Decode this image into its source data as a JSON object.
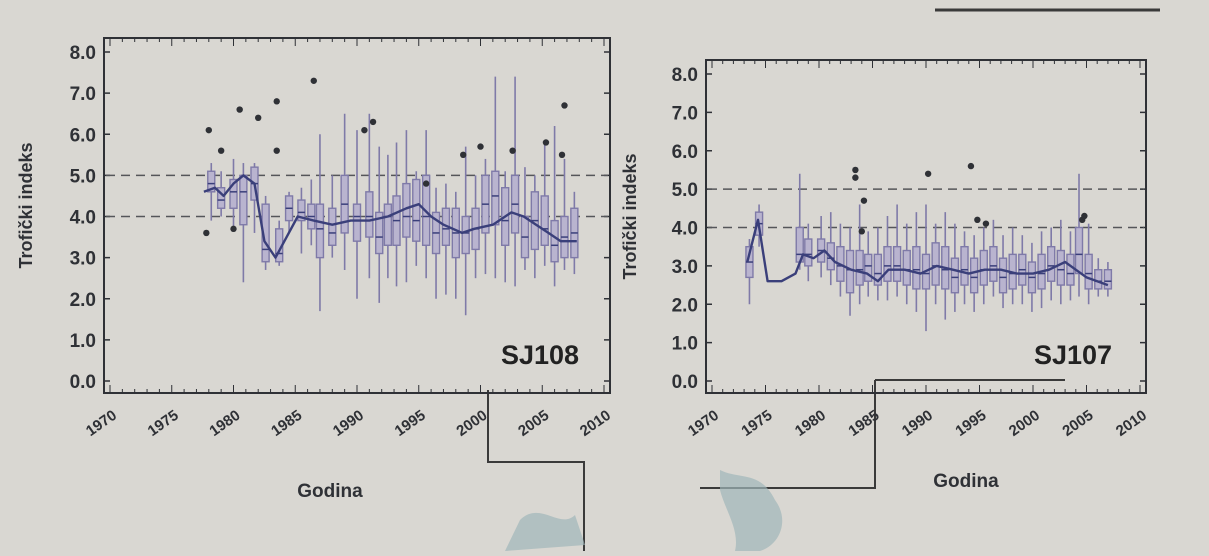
{
  "colors": {
    "paper": "#d9d7d2",
    "ink": "#2f3136",
    "box": "#7f7aa8",
    "trend": "#3a3f7a",
    "dash": "#55565a"
  },
  "chart_data": [
    {
      "type": "box",
      "station": "SJ108",
      "ylabel": "Trofički indeks",
      "xlabel": "Godina",
      "xlim": [
        1970,
        2010
      ],
      "ylim": [
        0,
        8
      ],
      "x_ticks": [
        "1970",
        "1975",
        "1980",
        "1985",
        "1990",
        "1995",
        "2000",
        "2005",
        "2010"
      ],
      "y_ticks": [
        "0.0",
        "1.0",
        "2.0",
        "3.0",
        "4.0",
        "5.0",
        "6.0",
        "7.0",
        "8.0"
      ],
      "reference_lines": [
        4.0,
        5.0
      ],
      "boxes": [
        {
          "x": 1978.2,
          "min": 3.9,
          "q1": 4.6,
          "med": 4.8,
          "q3": 5.1,
          "max": 5.3
        },
        {
          "x": 1979.0,
          "min": 4.0,
          "q1": 4.2,
          "med": 4.4,
          "q3": 4.7,
          "max": 5.1
        },
        {
          "x": 1980.0,
          "min": 3.7,
          "q1": 4.2,
          "med": 4.6,
          "q3": 4.9,
          "max": 5.4
        },
        {
          "x": 1980.8,
          "min": 2.4,
          "q1": 3.8,
          "med": 4.6,
          "q3": 5.0,
          "max": 5.3
        },
        {
          "x": 1981.7,
          "min": 3.6,
          "q1": 4.4,
          "med": 4.8,
          "q3": 5.2,
          "max": 5.3
        },
        {
          "x": 1982.6,
          "min": 2.7,
          "q1": 2.9,
          "med": 3.2,
          "q3": 4.3,
          "max": 4.5
        },
        {
          "x": 1983.7,
          "min": 2.8,
          "q1": 2.9,
          "med": 3.1,
          "q3": 3.7,
          "max": 3.9
        },
        {
          "x": 1984.5,
          "min": 3.6,
          "q1": 3.9,
          "med": 4.2,
          "q3": 4.5,
          "max": 4.6
        },
        {
          "x": 1985.5,
          "min": 3.1,
          "q1": 3.9,
          "med": 4.1,
          "q3": 4.4,
          "max": 4.7
        },
        {
          "x": 1986.3,
          "min": 3.3,
          "q1": 3.7,
          "med": 4.0,
          "q3": 4.3,
          "max": 4.9
        },
        {
          "x": 1987.0,
          "min": 1.7,
          "q1": 3.0,
          "med": 3.7,
          "q3": 4.3,
          "max": 6.0
        },
        {
          "x": 1988.0,
          "min": 3.0,
          "q1": 3.3,
          "med": 3.6,
          "q3": 4.2,
          "max": 5.0
        },
        {
          "x": 1989.0,
          "min": 2.7,
          "q1": 3.6,
          "med": 4.3,
          "q3": 5.0,
          "max": 6.5
        },
        {
          "x": 1990.0,
          "min": 2.0,
          "q1": 3.4,
          "med": 4.0,
          "q3": 4.3,
          "max": 6.1
        },
        {
          "x": 1991.0,
          "min": 2.5,
          "q1": 3.5,
          "med": 4.0,
          "q3": 4.6,
          "max": 6.5
        },
        {
          "x": 1991.8,
          "min": 1.9,
          "q1": 3.1,
          "med": 3.5,
          "q3": 4.1,
          "max": 5.7
        },
        {
          "x": 1992.5,
          "min": 2.5,
          "q1": 3.3,
          "med": 4.0,
          "q3": 4.3,
          "max": 5.5
        },
        {
          "x": 1993.2,
          "min": 2.3,
          "q1": 3.3,
          "med": 3.9,
          "q3": 4.5,
          "max": 5.8
        },
        {
          "x": 1994.0,
          "min": 2.4,
          "q1": 3.5,
          "med": 4.0,
          "q3": 4.8,
          "max": 6.1
        },
        {
          "x": 1994.8,
          "min": 2.8,
          "q1": 3.4,
          "med": 3.9,
          "q3": 4.9,
          "max": 5.1
        },
        {
          "x": 1995.6,
          "min": 2.5,
          "q1": 3.3,
          "med": 4.0,
          "q3": 5.0,
          "max": 6.1
        },
        {
          "x": 1996.4,
          "min": 2.0,
          "q1": 3.1,
          "med": 3.6,
          "q3": 4.1,
          "max": 4.7
        },
        {
          "x": 1997.2,
          "min": 2.1,
          "q1": 3.3,
          "med": 3.7,
          "q3": 4.2,
          "max": 4.8
        },
        {
          "x": 1998.0,
          "min": 2.0,
          "q1": 3.0,
          "med": 3.6,
          "q3": 4.2,
          "max": 4.6
        },
        {
          "x": 1998.8,
          "min": 1.6,
          "q1": 3.1,
          "med": 3.6,
          "q3": 4.0,
          "max": 5.7
        },
        {
          "x": 1999.6,
          "min": 2.5,
          "q1": 3.2,
          "med": 3.7,
          "q3": 4.2,
          "max": 5.0
        },
        {
          "x": 2000.4,
          "min": 2.6,
          "q1": 3.6,
          "med": 4.3,
          "q3": 5.0,
          "max": 5.4
        },
        {
          "x": 2001.2,
          "min": 2.5,
          "q1": 3.8,
          "med": 4.5,
          "q3": 5.1,
          "max": 7.4
        },
        {
          "x": 2002.0,
          "min": 2.4,
          "q1": 3.3,
          "med": 3.9,
          "q3": 4.7,
          "max": 5.1
        },
        {
          "x": 2002.8,
          "min": 2.3,
          "q1": 3.6,
          "med": 4.3,
          "q3": 5.0,
          "max": 7.4
        },
        {
          "x": 2003.6,
          "min": 2.7,
          "q1": 3.0,
          "med": 3.5,
          "q3": 4.0,
          "max": 5.2
        },
        {
          "x": 2004.4,
          "min": 2.5,
          "q1": 3.2,
          "med": 3.9,
          "q3": 4.6,
          "max": 5.0
        },
        {
          "x": 2005.2,
          "min": 2.8,
          "q1": 3.3,
          "med": 3.7,
          "q3": 4.5,
          "max": 5.8
        },
        {
          "x": 2006.0,
          "min": 2.3,
          "q1": 2.9,
          "med": 3.3,
          "q3": 3.9,
          "max": 6.2
        },
        {
          "x": 2006.8,
          "min": 2.7,
          "q1": 3.0,
          "med": 3.5,
          "q3": 4.0,
          "max": 5.4
        },
        {
          "x": 2007.6,
          "min": 2.6,
          "q1": 3.0,
          "med": 3.6,
          "q3": 4.2,
          "max": 4.6
        }
      ],
      "trend": [
        [
          1977.6,
          4.6
        ],
        [
          1978.5,
          4.7
        ],
        [
          1979.2,
          4.5
        ],
        [
          1980.0,
          4.8
        ],
        [
          1980.8,
          5.0
        ],
        [
          1981.7,
          4.8
        ],
        [
          1982.5,
          3.4
        ],
        [
          1983.4,
          3.0
        ],
        [
          1984.3,
          3.5
        ],
        [
          1985.2,
          4.0
        ],
        [
          1986.5,
          3.9
        ],
        [
          1988.0,
          3.8
        ],
        [
          1989.5,
          3.9
        ],
        [
          1991.0,
          3.9
        ],
        [
          1992.5,
          4.0
        ],
        [
          1994.0,
          4.2
        ],
        [
          1995.0,
          4.3
        ],
        [
          1996.0,
          4.0
        ],
        [
          1997.0,
          3.8
        ],
        [
          1998.5,
          3.6
        ],
        [
          1999.5,
          3.7
        ],
        [
          2001.0,
          3.8
        ],
        [
          2002.5,
          4.1
        ],
        [
          2003.5,
          4.0
        ],
        [
          2004.5,
          3.8
        ],
        [
          2005.5,
          3.6
        ],
        [
          2006.5,
          3.4
        ],
        [
          2007.8,
          3.4
        ]
      ],
      "outliers": [
        [
          1978.0,
          6.1
        ],
        [
          1979.0,
          5.6
        ],
        [
          1980.5,
          6.6
        ],
        [
          1982.0,
          6.4
        ],
        [
          1983.5,
          6.8
        ],
        [
          1983.5,
          5.6
        ],
        [
          1986.5,
          7.3
        ],
        [
          1990.6,
          6.1
        ],
        [
          1991.3,
          6.3
        ],
        [
          1995.6,
          4.8
        ],
        [
          1998.6,
          5.5
        ],
        [
          2000.0,
          5.7
        ],
        [
          2002.6,
          5.6
        ],
        [
          2005.3,
          5.8
        ],
        [
          2006.8,
          6.7
        ],
        [
          2006.6,
          5.5
        ],
        [
          1977.8,
          3.6
        ],
        [
          1980.0,
          3.7
        ]
      ]
    },
    {
      "type": "box",
      "station": "SJ107",
      "ylabel": "Trofički indeks",
      "xlabel": "Godina",
      "xlim": [
        1970,
        2010
      ],
      "ylim": [
        0,
        8
      ],
      "x_ticks": [
        "1970",
        "1975",
        "1980",
        "1985",
        "1990",
        "1995",
        "2000",
        "2005",
        "2010"
      ],
      "y_ticks": [
        "0.0",
        "1.0",
        "2.0",
        "3.0",
        "4.0",
        "5.0",
        "6.0",
        "7.0",
        "8.0"
      ],
      "reference_lines": [
        4.0,
        5.0
      ],
      "boxes": [
        {
          "x": 1973.5,
          "min": 2.0,
          "q1": 2.7,
          "med": 3.1,
          "q3": 3.5,
          "max": 3.7
        },
        {
          "x": 1974.4,
          "min": 3.5,
          "q1": 3.8,
          "med": 4.1,
          "q3": 4.4,
          "max": 4.6
        },
        {
          "x": 1978.2,
          "min": 2.9,
          "q1": 3.1,
          "med": 3.3,
          "q3": 4.0,
          "max": 5.4
        },
        {
          "x": 1979.0,
          "min": 2.6,
          "q1": 3.0,
          "med": 3.3,
          "q3": 3.7,
          "max": 4.1
        },
        {
          "x": 1980.2,
          "min": 2.7,
          "q1": 3.1,
          "med": 3.4,
          "q3": 3.7,
          "max": 4.3
        },
        {
          "x": 1981.1,
          "min": 2.5,
          "q1": 2.9,
          "med": 3.2,
          "q3": 3.6,
          "max": 4.4
        },
        {
          "x": 1982.0,
          "min": 2.2,
          "q1": 2.6,
          "med": 3.0,
          "q3": 3.5,
          "max": 4.1
        },
        {
          "x": 1982.9,
          "min": 1.7,
          "q1": 2.3,
          "med": 2.9,
          "q3": 3.4,
          "max": 4.0
        },
        {
          "x": 1983.8,
          "min": 2.0,
          "q1": 2.5,
          "med": 2.9,
          "q3": 3.4,
          "max": 4.6
        },
        {
          "x": 1984.6,
          "min": 2.2,
          "q1": 2.6,
          "med": 3.0,
          "q3": 3.3,
          "max": 3.9
        },
        {
          "x": 1985.5,
          "min": 2.1,
          "q1": 2.5,
          "med": 2.8,
          "q3": 3.3,
          "max": 4.0
        },
        {
          "x": 1986.4,
          "min": 2.1,
          "q1": 2.6,
          "med": 3.0,
          "q3": 3.5,
          "max": 4.3
        },
        {
          "x": 1987.3,
          "min": 2.2,
          "q1": 2.6,
          "med": 3.0,
          "q3": 3.5,
          "max": 4.6
        },
        {
          "x": 1988.2,
          "min": 2.0,
          "q1": 2.5,
          "med": 2.9,
          "q3": 3.4,
          "max": 4.1
        },
        {
          "x": 1989.1,
          "min": 1.8,
          "q1": 2.4,
          "med": 2.9,
          "q3": 3.5,
          "max": 4.4
        },
        {
          "x": 1990.0,
          "min": 1.3,
          "q1": 2.4,
          "med": 2.8,
          "q3": 3.3,
          "max": 4.6
        },
        {
          "x": 1990.9,
          "min": 2.0,
          "q1": 2.5,
          "med": 3.0,
          "q3": 3.6,
          "max": 4.1
        },
        {
          "x": 1991.8,
          "min": 1.6,
          "q1": 2.4,
          "med": 2.9,
          "q3": 3.5,
          "max": 4.4
        },
        {
          "x": 1992.7,
          "min": 1.8,
          "q1": 2.3,
          "med": 2.7,
          "q3": 3.2,
          "max": 4.1
        },
        {
          "x": 1993.6,
          "min": 2.0,
          "q1": 2.5,
          "med": 2.9,
          "q3": 3.5,
          "max": 3.9
        },
        {
          "x": 1994.5,
          "min": 1.8,
          "q1": 2.3,
          "med": 2.7,
          "q3": 3.2,
          "max": 3.8
        },
        {
          "x": 1995.4,
          "min": 2.0,
          "q1": 2.5,
          "med": 2.9,
          "q3": 3.4,
          "max": 4.0
        },
        {
          "x": 1996.3,
          "min": 2.2,
          "q1": 2.6,
          "med": 3.0,
          "q3": 3.5,
          "max": 4.2
        },
        {
          "x": 1997.2,
          "min": 1.9,
          "q1": 2.3,
          "med": 2.7,
          "q3": 3.2,
          "max": 3.8
        },
        {
          "x": 1998.1,
          "min": 2.0,
          "q1": 2.4,
          "med": 2.8,
          "q3": 3.3,
          "max": 4.0
        },
        {
          "x": 1999.0,
          "min": 2.0,
          "q1": 2.5,
          "med": 2.9,
          "q3": 3.3,
          "max": 3.8
        },
        {
          "x": 1999.9,
          "min": 1.8,
          "q1": 2.3,
          "med": 2.7,
          "q3": 3.1,
          "max": 3.6
        },
        {
          "x": 2000.8,
          "min": 1.9,
          "q1": 2.4,
          "med": 2.8,
          "q3": 3.3,
          "max": 3.9
        },
        {
          "x": 2001.7,
          "min": 2.1,
          "q1": 2.6,
          "med": 3.0,
          "q3": 3.5,
          "max": 4.0
        },
        {
          "x": 2002.6,
          "min": 2.0,
          "q1": 2.5,
          "med": 2.9,
          "q3": 3.4,
          "max": 4.2
        },
        {
          "x": 2003.5,
          "min": 2.1,
          "q1": 2.5,
          "med": 2.8,
          "q3": 3.3,
          "max": 3.9
        },
        {
          "x": 2004.3,
          "min": 2.2,
          "q1": 2.8,
          "med": 3.3,
          "q3": 4.0,
          "max": 5.4
        },
        {
          "x": 2005.2,
          "min": 2.0,
          "q1": 2.4,
          "med": 2.8,
          "q3": 3.3,
          "max": 4.1
        },
        {
          "x": 2006.1,
          "min": 2.2,
          "q1": 2.4,
          "med": 2.6,
          "q3": 2.9,
          "max": 3.2
        },
        {
          "x": 2007.0,
          "min": 2.2,
          "q1": 2.4,
          "med": 2.6,
          "q3": 2.9,
          "max": 3.1
        }
      ],
      "trend": [
        [
          1973.3,
          3.1
        ],
        [
          1974.3,
          4.2
        ],
        [
          1975.2,
          2.6
        ],
        [
          1976.5,
          2.6
        ],
        [
          1977.8,
          2.8
        ],
        [
          1978.5,
          3.3
        ],
        [
          1979.5,
          3.2
        ],
        [
          1980.5,
          3.4
        ],
        [
          1981.5,
          3.1
        ],
        [
          1983.0,
          2.9
        ],
        [
          1984.5,
          2.8
        ],
        [
          1985.5,
          2.6
        ],
        [
          1986.5,
          2.9
        ],
        [
          1988.0,
          2.9
        ],
        [
          1989.5,
          2.8
        ],
        [
          1991.0,
          3.0
        ],
        [
          1992.5,
          2.9
        ],
        [
          1994.0,
          2.8
        ],
        [
          1995.5,
          2.9
        ],
        [
          1997.0,
          2.9
        ],
        [
          1998.5,
          2.8
        ],
        [
          2000.0,
          2.8
        ],
        [
          2001.5,
          2.9
        ],
        [
          2003.0,
          3.1
        ],
        [
          2004.0,
          2.9
        ],
        [
          2005.0,
          2.7
        ],
        [
          2006.0,
          2.6
        ],
        [
          2007.0,
          2.5
        ]
      ],
      "outliers": [
        [
          1983.4,
          5.5
        ],
        [
          1983.4,
          5.3
        ],
        [
          1984.2,
          4.7
        ],
        [
          1990.2,
          5.4
        ],
        [
          1994.2,
          5.6
        ],
        [
          1994.8,
          4.2
        ],
        [
          1995.6,
          4.1
        ],
        [
          2004.6,
          4.2
        ],
        [
          2004.8,
          4.3
        ],
        [
          1984.0,
          3.9
        ]
      ]
    }
  ]
}
